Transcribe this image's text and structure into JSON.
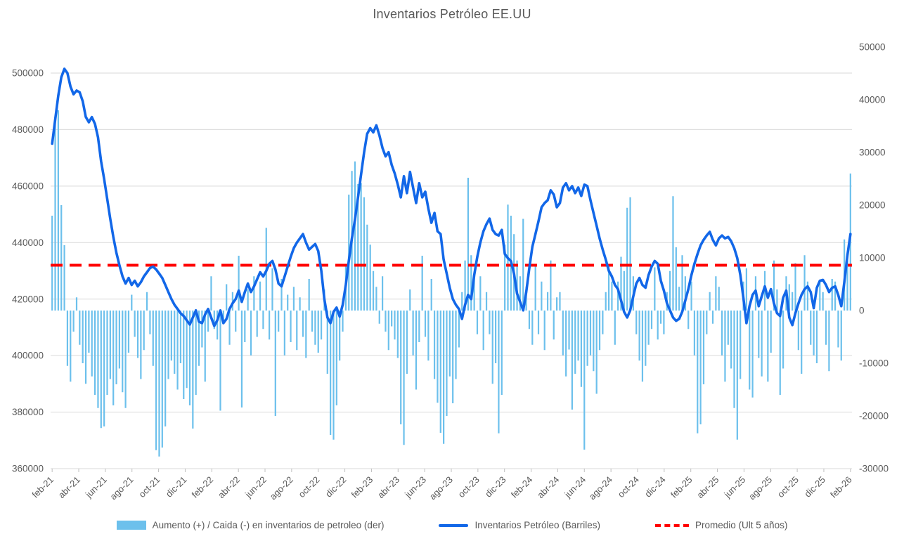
{
  "title": "Inventarios Petróleo EE.UU",
  "colors": {
    "bar": "#6CC0EC",
    "line": "#1267E8",
    "average": "#FF0000",
    "grid": "#D9D9D9",
    "axis_text": "#595959",
    "tick_mark": "#BFBFBF",
    "background": "#FFFFFF"
  },
  "chart_data": {
    "type": "bar+line combo, dual axis, weekly data feb-21 to feb-26",
    "title": "Inventarios Petróleo EE.UU",
    "x_tick_labels": [
      "feb-21",
      "abr-21",
      "jun-21",
      "ago-21",
      "oct-21",
      "dic-21",
      "feb-22",
      "abr-22",
      "jun-22",
      "ago-22",
      "oct-22",
      "dic-22",
      "feb-23",
      "abr-23",
      "jun-23",
      "ago-23",
      "oct-23",
      "dic-23",
      "feb-24",
      "abr-24",
      "jun-24",
      "ago-24",
      "oct-24",
      "dic-24",
      "feb-25",
      "abr-25",
      "jun-25",
      "ago-25",
      "oct-25",
      "dic-25",
      "feb-26"
    ],
    "left_axis": {
      "ticks": [
        500000,
        480000,
        460000,
        440000,
        420000,
        400000,
        380000,
        360000
      ],
      "min": 360000,
      "max": 509200
    },
    "right_axis": {
      "ticks": [
        50000,
        40000,
        30000,
        20000,
        10000,
        0,
        -10000,
        -20000,
        -30000
      ],
      "min": -30000,
      "max": 50000
    },
    "grid": "horizontal only",
    "legend_position": "bottom center",
    "series": [
      {
        "name": "Aumento (+) / Caida (-) en inventarios de petroleo (der)",
        "type": "bar",
        "axis": "right",
        "values": [
          18000,
          36500,
          38000,
          20000,
          12400,
          -10500,
          -13500,
          -4000,
          2500,
          -6500,
          -10000,
          -13900,
          -8000,
          -12500,
          -16000,
          -18500,
          -22300,
          -22000,
          -16000,
          -13000,
          -18000,
          -14000,
          -11000,
          -15500,
          -18500,
          -8000,
          3000,
          -5000,
          -9000,
          -13000,
          -7500,
          3500,
          -4500,
          -10500,
          -26500,
          -27700,
          -26000,
          -22000,
          -13000,
          -9500,
          -12000,
          -15000,
          -10000,
          -16800,
          -14700,
          -18000,
          -22400,
          -16000,
          -10500,
          -7000,
          -13500,
          -4000,
          6500,
          -3500,
          -5500,
          -19000,
          -2000,
          5000,
          -6500,
          3500,
          -4000,
          10400,
          -18400,
          -6000,
          4000,
          -8500,
          6500,
          -5000,
          5500,
          -3500,
          15700,
          -5500,
          8000,
          -20000,
          -4000,
          6000,
          -8500,
          3000,
          -6000,
          4500,
          -7500,
          2500,
          -5000,
          -9000,
          6000,
          -4000,
          -6500,
          -8000,
          -5500,
          4000,
          -12000,
          -23600,
          -24500,
          -18000,
          -9500,
          -4000,
          8500,
          22000,
          26500,
          28300,
          24000,
          24200,
          21500,
          16300,
          12500,
          7500,
          4500,
          -2500,
          6500,
          -4000,
          -7500,
          -3000,
          -5500,
          -9000,
          -21600,
          -25500,
          -12000,
          4000,
          -8500,
          -15000,
          -6000,
          10400,
          -5000,
          -9500,
          6000,
          -13000,
          -17500,
          -23200,
          -25300,
          -20000,
          -12500,
          -17600,
          -13000,
          -7000,
          3500,
          9500,
          25200,
          10500,
          6500,
          -4500,
          6500,
          -7500,
          3500,
          -4500,
          -13900,
          -10000,
          -23300,
          -16000,
          12500,
          20100,
          18000,
          14500,
          9500,
          6500,
          17400,
          4500,
          -3500,
          -6500,
          8800,
          -4500,
          5500,
          -7500,
          3500,
          9500,
          -5500,
          2500,
          3500,
          -8500,
          -12500,
          -7400,
          -18800,
          -12000,
          -9500,
          -14500,
          -26400,
          -10500,
          -8500,
          -11500,
          -15800,
          -7500,
          -4500,
          3500,
          8500,
          5500,
          -6500,
          5500,
          10200,
          7500,
          19500,
          21500,
          6500,
          -4500,
          -9500,
          -13500,
          -10500,
          -6500,
          -3500,
          8200,
          -5500,
          -2500,
          -4500,
          3500,
          7500,
          21700,
          12000,
          4500,
          10500,
          6500,
          -3500,
          5500,
          -8500,
          -23300,
          -21600,
          -14000,
          -4500,
          3500,
          -2500,
          6500,
          4500,
          -8500,
          -13500,
          -6500,
          -11000,
          -18500,
          -24500,
          -13000,
          5500,
          8000,
          -15000,
          -16500,
          6500,
          -9000,
          -12500,
          7500,
          -13500,
          -8000,
          9500,
          4000,
          -16000,
          -11000,
          6500,
          5000,
          3500,
          9000,
          -7500,
          -12000,
          10500,
          5500,
          -6500,
          -8500,
          -10000,
          5500,
          3500,
          -6500,
          -11500,
          6000,
          5500,
          -7000,
          -9500,
          13500,
          9500,
          26000
        ]
      },
      {
        "name": "Inventarios Petróleo (Barriles)",
        "type": "line",
        "axis": "left",
        "values": [
          475000,
          483500,
          492000,
          498500,
          501500,
          500000,
          495200,
          492500,
          493800,
          493200,
          490000,
          484500,
          482600,
          484400,
          482000,
          477300,
          468800,
          462600,
          455500,
          448500,
          442000,
          436500,
          432000,
          428000,
          425500,
          427500,
          425000,
          426500,
          424500,
          426000,
          428000,
          429500,
          431000,
          431500,
          430500,
          429000,
          427500,
          425000,
          422500,
          420000,
          418000,
          416500,
          415000,
          414000,
          412500,
          411000,
          413500,
          416000,
          412000,
          411500,
          414500,
          416500,
          413500,
          410500,
          412500,
          416000,
          411500,
          413000,
          416500,
          418500,
          420000,
          423000,
          419000,
          422500,
          425500,
          422500,
          424500,
          427000,
          429500,
          428000,
          430000,
          432500,
          433500,
          430500,
          425500,
          424500,
          428000,
          431500,
          435000,
          438000,
          440000,
          441500,
          443000,
          440000,
          437500,
          438500,
          439500,
          437000,
          430000,
          420000,
          413500,
          411500,
          415500,
          417000,
          413800,
          418000,
          425000,
          433500,
          441500,
          448000,
          456000,
          464000,
          472000,
          478500,
          480500,
          479000,
          481500,
          478000,
          473500,
          470500,
          472000,
          467500,
          464500,
          460500,
          456000,
          463500,
          457500,
          465000,
          459500,
          454000,
          461000,
          456000,
          458000,
          452000,
          447000,
          450500,
          444000,
          443000,
          434000,
          429000,
          424000,
          420000,
          418000,
          416500,
          413000,
          418000,
          421500,
          420000,
          428500,
          435000,
          440000,
          444000,
          446500,
          448500,
          444500,
          443000,
          442500,
          444500,
          436000,
          434500,
          433500,
          429000,
          422000,
          419000,
          416000,
          422500,
          431000,
          438500,
          443000,
          447500,
          452500,
          454000,
          455000,
          458500,
          457000,
          452500,
          454000,
          459500,
          461000,
          458500,
          460000,
          457500,
          459500,
          456500,
          460500,
          460000,
          455000,
          450500,
          446000,
          441500,
          437500,
          434000,
          430000,
          428000,
          425000,
          423500,
          419500,
          415500,
          413500,
          416000,
          421000,
          425500,
          427500,
          425000,
          424000,
          428500,
          431500,
          433500,
          432500,
          426500,
          423000,
          418500,
          416000,
          413500,
          412300,
          413000,
          415500,
          419500,
          423500,
          428500,
          432500,
          436000,
          439000,
          441000,
          442500,
          443800,
          441000,
          439000,
          441500,
          442500,
          441500,
          442000,
          440500,
          438000,
          434500,
          428500,
          420500,
          411500,
          417500,
          421500,
          423000,
          417500,
          421000,
          424500,
          420500,
          423500,
          418500,
          415000,
          414000,
          420500,
          423000,
          413500,
          410800,
          415000,
          418500,
          421500,
          423500,
          424500,
          422500,
          416800,
          424000,
          426500,
          426800,
          425000,
          422500,
          424000,
          424500,
          421500,
          417500,
          426000,
          435500,
          443000
        ]
      },
      {
        "name": "Promedio (Ult 5 años)",
        "type": "dashed-line",
        "axis": "left",
        "value": 432000
      }
    ]
  },
  "legend": {
    "items": [
      {
        "label": "Aumento (+) / Caida (-) en inventarios de petroleo (der)"
      },
      {
        "label": "Inventarios Petróleo (Barriles)"
      },
      {
        "label": "Promedio (Ult 5 años)"
      }
    ]
  }
}
